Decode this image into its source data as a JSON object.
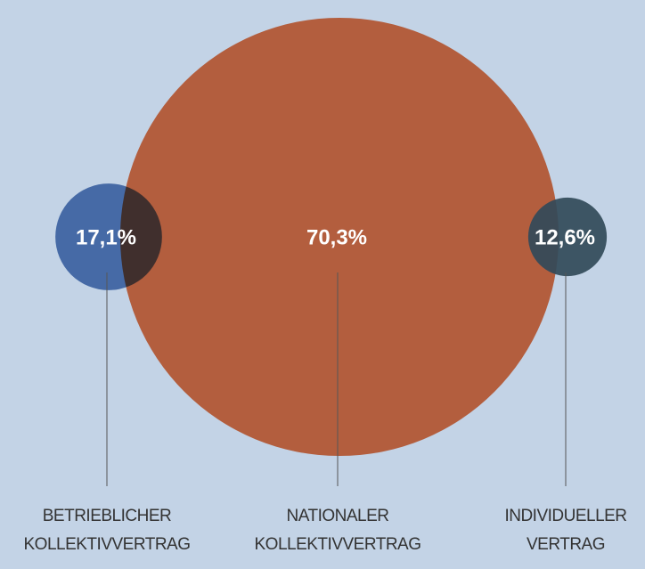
{
  "chart_data": {
    "type": "bubble",
    "categories": [
      [
        "BETRIEBLICHER",
        "KOLLEKTIVVERTRAG"
      ],
      [
        "NATIONALER",
        "KOLLEKTIVVERTRAG"
      ],
      [
        "INDIVIDUELLER",
        "VERTRAG"
      ]
    ],
    "values": [
      17.1,
      70.3,
      12.6
    ],
    "value_labels": [
      "17,1%",
      "70,3%",
      "12,6%"
    ],
    "colors": [
      "#5b80b8",
      "#b35e3e",
      "#324a59"
    ]
  }
}
